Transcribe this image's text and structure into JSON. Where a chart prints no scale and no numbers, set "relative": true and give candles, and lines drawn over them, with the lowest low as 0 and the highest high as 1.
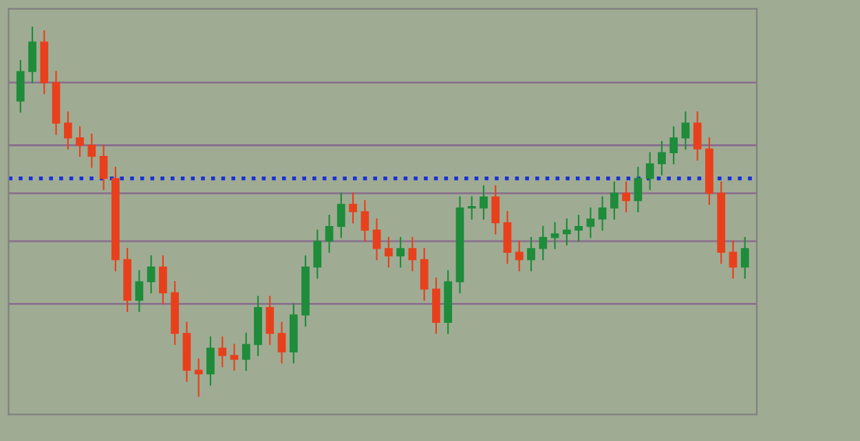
{
  "chart_data": {
    "type": "candlestick",
    "relative": true,
    "categories": [
      null,
      null,
      null,
      null,
      null,
      null,
      null,
      null,
      null,
      null,
      null,
      null,
      null,
      null,
      null,
      null,
      null,
      null,
      null,
      null,
      null,
      null,
      null,
      null,
      null,
      null,
      null,
      null,
      null,
      null,
      null,
      null,
      null,
      null,
      null,
      null,
      null,
      null,
      null,
      null,
      null,
      null,
      null,
      null,
      null,
      null,
      null,
      null,
      null,
      null,
      null,
      null,
      null,
      null,
      null,
      null,
      null,
      null,
      null,
      null,
      null,
      null
    ],
    "ohlc": [
      [
        0.8,
        0.91,
        0.77,
        0.88
      ],
      [
        0.88,
        1.0,
        0.85,
        0.96
      ],
      [
        0.96,
        0.99,
        0.82,
        0.85
      ],
      [
        0.85,
        0.88,
        0.71,
        0.74
      ],
      [
        0.74,
        0.77,
        0.67,
        0.7
      ],
      [
        0.7,
        0.73,
        0.65,
        0.68
      ],
      [
        0.68,
        0.71,
        0.62,
        0.65
      ],
      [
        0.65,
        0.68,
        0.56,
        0.59
      ],
      [
        0.59,
        0.62,
        0.34,
        0.37
      ],
      [
        0.37,
        0.4,
        0.23,
        0.26
      ],
      [
        0.26,
        0.34,
        0.23,
        0.31
      ],
      [
        0.31,
        0.38,
        0.28,
        0.35
      ],
      [
        0.35,
        0.38,
        0.25,
        0.28
      ],
      [
        0.28,
        0.31,
        0.14,
        0.17
      ],
      [
        0.17,
        0.2,
        0.04,
        0.07
      ],
      [
        0.07,
        0.1,
        0.0,
        0.06
      ],
      [
        0.06,
        0.16,
        0.03,
        0.13
      ],
      [
        0.13,
        0.16,
        0.08,
        0.11
      ],
      [
        0.11,
        0.14,
        0.07,
        0.1
      ],
      [
        0.1,
        0.17,
        0.07,
        0.14
      ],
      [
        0.14,
        0.27,
        0.11,
        0.24
      ],
      [
        0.24,
        0.27,
        0.14,
        0.17
      ],
      [
        0.17,
        0.2,
        0.09,
        0.12
      ],
      [
        0.12,
        0.25,
        0.09,
        0.22
      ],
      [
        0.22,
        0.38,
        0.19,
        0.35
      ],
      [
        0.35,
        0.45,
        0.32,
        0.42
      ],
      [
        0.42,
        0.49,
        0.39,
        0.46
      ],
      [
        0.46,
        0.55,
        0.43,
        0.52
      ],
      [
        0.52,
        0.55,
        0.47,
        0.5
      ],
      [
        0.5,
        0.53,
        0.42,
        0.45
      ],
      [
        0.45,
        0.48,
        0.37,
        0.4
      ],
      [
        0.4,
        0.43,
        0.35,
        0.38
      ],
      [
        0.38,
        0.43,
        0.35,
        0.4
      ],
      [
        0.4,
        0.43,
        0.34,
        0.37
      ],
      [
        0.37,
        0.4,
        0.26,
        0.29
      ],
      [
        0.29,
        0.32,
        0.17,
        0.2
      ],
      [
        0.2,
        0.34,
        0.17,
        0.31
      ],
      [
        0.31,
        0.54,
        0.28,
        0.51
      ],
      [
        0.51,
        0.54,
        0.48,
        0.51
      ],
      [
        0.51,
        0.57,
        0.48,
        0.54
      ],
      [
        0.54,
        0.57,
        0.44,
        0.47
      ],
      [
        0.47,
        0.5,
        0.36,
        0.39
      ],
      [
        0.39,
        0.42,
        0.34,
        0.37
      ],
      [
        0.37,
        0.43,
        0.34,
        0.4
      ],
      [
        0.4,
        0.46,
        0.37,
        0.43
      ],
      [
        0.43,
        0.47,
        0.4,
        0.44
      ],
      [
        0.44,
        0.48,
        0.41,
        0.45
      ],
      [
        0.45,
        0.49,
        0.42,
        0.46
      ],
      [
        0.46,
        0.51,
        0.43,
        0.48
      ],
      [
        0.48,
        0.54,
        0.45,
        0.51
      ],
      [
        0.51,
        0.58,
        0.48,
        0.55
      ],
      [
        0.55,
        0.58,
        0.5,
        0.53
      ],
      [
        0.53,
        0.62,
        0.5,
        0.59
      ],
      [
        0.59,
        0.66,
        0.56,
        0.63
      ],
      [
        0.63,
        0.69,
        0.6,
        0.66
      ],
      [
        0.66,
        0.73,
        0.63,
        0.7
      ],
      [
        0.7,
        0.77,
        0.67,
        0.74
      ],
      [
        0.74,
        0.77,
        0.64,
        0.67
      ],
      [
        0.67,
        0.7,
        0.52,
        0.55
      ],
      [
        0.55,
        0.58,
        0.36,
        0.39
      ],
      [
        0.39,
        0.42,
        0.32,
        0.35
      ],
      [
        0.35,
        0.43,
        0.32,
        0.4
      ]
    ],
    "colors": [
      "#1e8c3a",
      "#1e8c3a",
      "#e8401c",
      "#e8401c",
      "#e8401c",
      "#e8401c",
      "#e8401c",
      "#e8401c",
      "#e8401c",
      "#e8401c",
      "#1e8c3a",
      "#1e8c3a",
      "#e8401c",
      "#e8401c",
      "#e8401c",
      "#e8401c",
      "#1e8c3a",
      "#e8401c",
      "#e8401c",
      "#1e8c3a",
      "#1e8c3a",
      "#e8401c",
      "#e8401c",
      "#1e8c3a",
      "#1e8c3a",
      "#1e8c3a",
      "#1e8c3a",
      "#1e8c3a",
      "#e8401c",
      "#e8401c",
      "#e8401c",
      "#e8401c",
      "#1e8c3a",
      "#e8401c",
      "#e8401c",
      "#e8401c",
      "#1e8c3a",
      "#1e8c3a",
      "#1e8c3a",
      "#1e8c3a",
      "#e8401c",
      "#e8401c",
      "#e8401c",
      "#1e8c3a",
      "#1e8c3a",
      "#1e8c3a",
      "#1e8c3a",
      "#1e8c3a",
      "#1e8c3a",
      "#1e8c3a",
      "#1e8c3a",
      "#e8401c",
      "#1e8c3a",
      "#1e8c3a",
      "#1e8c3a",
      "#1e8c3a",
      "#1e8c3a",
      "#e8401c",
      "#e8401c",
      "#e8401c",
      "#e8401c",
      "#1e8c3a"
    ],
    "ref_lines": [
      {
        "axis": "y",
        "value": 0.85,
        "color": "#8a6f8e"
      },
      {
        "axis": "y",
        "value": 0.68,
        "color": "#8a6f8e"
      },
      {
        "axis": "y",
        "value": 0.55,
        "color": "#8a6f8e"
      },
      {
        "axis": "y",
        "value": 0.42,
        "color": "#8a6f8e"
      },
      {
        "axis": "y",
        "value": 0.25,
        "color": "#8a6f8e"
      },
      {
        "axis": "y",
        "value": 0.59,
        "color": "#1a2fd6",
        "line_style": "dotted"
      }
    ],
    "grid": false,
    "legend": false
  }
}
